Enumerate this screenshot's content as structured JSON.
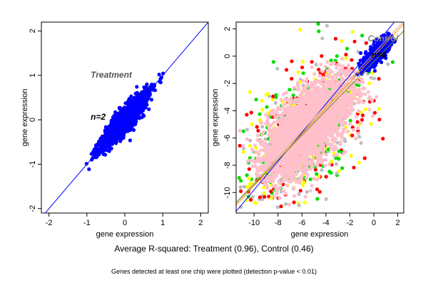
{
  "chart_data": [
    {
      "type": "scatter",
      "xlabel": "gene expression",
      "ylabel": "gene expression",
      "xlim": [
        -2.2,
        2.2
      ],
      "ylim": [
        -2.1,
        2.2
      ],
      "xticks": [
        -2,
        -1,
        0,
        1,
        2
      ],
      "yticks": [
        -2,
        -1,
        0,
        1,
        2
      ],
      "grid": false,
      "annotations": [
        {
          "text": "Treatment",
          "x": -0.9,
          "y": 0.95,
          "color": "#555555"
        },
        {
          "text": "n=2",
          "x": -0.9,
          "y": 0.0,
          "color": "#000000"
        }
      ],
      "series": [
        {
          "color": "#0000ff",
          "cloud": {
            "center": [
              0,
              0
            ],
            "slope": 1.0,
            "extent": [
              -1.05,
              1.25
            ],
            "spread": 0.14
          }
        }
      ],
      "fit_lines": [
        {
          "color": "#0000ff",
          "slope": 1.0,
          "intercept": 0.0
        }
      ]
    },
    {
      "type": "scatter",
      "xlabel": "gene expression",
      "ylabel": "gene expression",
      "xlim": [
        -11.5,
        2.5
      ],
      "ylim": [
        -11.5,
        2.5
      ],
      "xticks": [
        -10,
        -8,
        -6,
        -4,
        -2,
        0,
        2
      ],
      "yticks": [
        -10,
        -8,
        -6,
        -4,
        -2,
        0,
        2
      ],
      "grid": false,
      "annotations": [
        {
          "text": "Control",
          "x": -0.5,
          "y": 1.1,
          "color": "#888888"
        },
        {
          "text": "n=6",
          "x": -0.2,
          "y": -0.1,
          "color": "#000000"
        }
      ],
      "series": [
        {
          "color": "#ffc0cb",
          "cloud": {
            "center": [
              -5.6,
              -5.3
            ],
            "extent": [
              -9.5,
              -1.5
            ],
            "spread": 2.3
          }
        },
        {
          "color": "#0000ff",
          "cloud": {
            "center": [
              0.4,
              0.4
            ],
            "extent": [
              -1.6,
              1.5
            ],
            "spread": 0.6
          }
        },
        {
          "color": "#00dd00",
          "points": "scatter_edge"
        },
        {
          "color": "#ffff00",
          "points": "scatter_edge"
        },
        {
          "color": "#ff0000",
          "points": "scatter_edge"
        },
        {
          "color": "#bebebe",
          "points": "scatter_edge"
        }
      ],
      "fit_lines": [
        {
          "color": "#0000ff",
          "slope": 1.05,
          "intercept": 0.7
        },
        {
          "color": "#d2b48c",
          "slope": 0.95,
          "intercept": 0.2
        },
        {
          "color": "#ff8c00",
          "slope": 0.95,
          "intercept": 0.0
        },
        {
          "color": "#6b8e23",
          "slope": 0.9,
          "intercept": -0.4
        }
      ]
    }
  ],
  "caption": "Average R-squared: Treatment (0.96), Control (0.46)",
  "note": "Genes detected at least one chip were plotted (detection p-value < 0.01)"
}
